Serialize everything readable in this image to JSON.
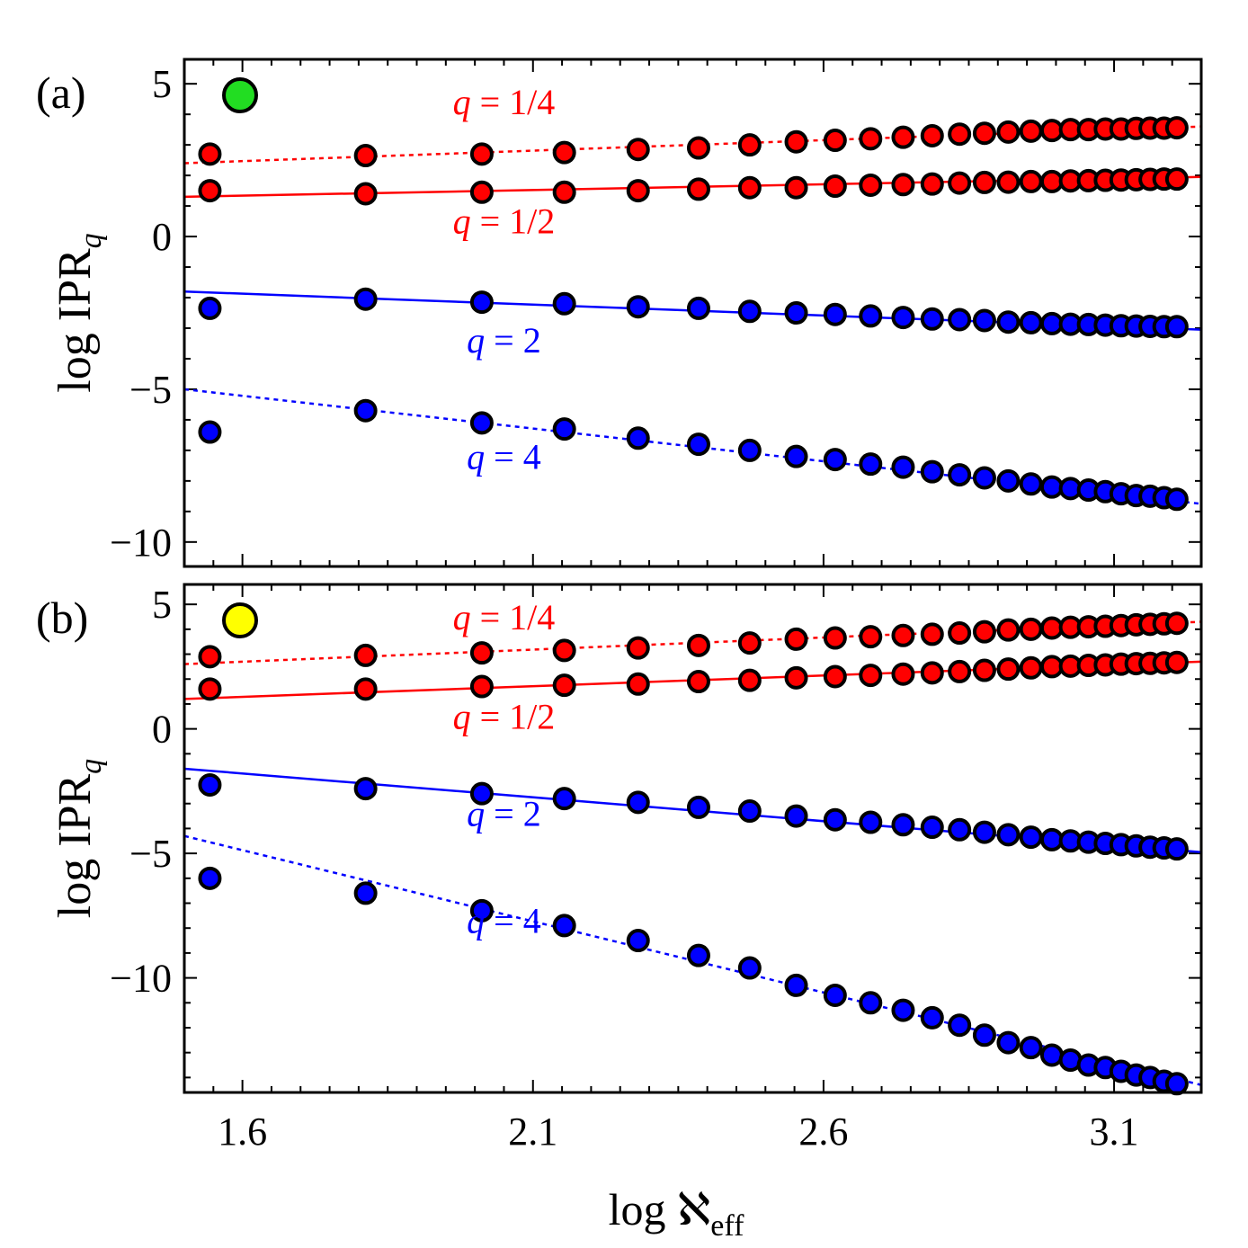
{
  "colors": {
    "red": "#ff0000",
    "blue": "#0000ff",
    "marker_outline": "#000000",
    "green_dot": "#22dd22",
    "yellow_dot": "#ffff00"
  },
  "figure": {
    "xlabel": {
      "prefix": "log ",
      "symbol": "ℵ",
      "sub": "eff"
    },
    "ylabel": {
      "prefix": "log IPR",
      "sub": "q"
    },
    "xlim": [
      1.5,
      3.25
    ],
    "xticks": [
      1.6,
      2.1,
      2.6,
      3.1
    ],
    "xtick_labels": [
      "1.6",
      "2.1",
      "2.6",
      "3.1"
    ]
  },
  "chart_data": [
    {
      "panel_label": "(a)",
      "indicator_color": "green",
      "type": "scatter",
      "ylim": [
        -10.8,
        5.8
      ],
      "yticks": [
        5,
        0,
        -5,
        -10
      ],
      "ytick_labels": [
        "5",
        "0",
        "−5",
        "−10"
      ],
      "x": [
        1.544,
        1.812,
        2.012,
        2.154,
        2.281,
        2.385,
        2.473,
        2.553,
        2.62,
        2.681,
        2.737,
        2.787,
        2.834,
        2.877,
        2.918,
        2.957,
        2.993,
        3.025,
        3.056,
        3.085,
        3.112,
        3.138,
        3.162,
        3.186,
        3.208
      ],
      "series": [
        {
          "curve": "q = 1/4",
          "color": "red",
          "line": "dotted",
          "fit": [
            1.5,
            2.4,
            3.25,
            3.6
          ],
          "values": [
            2.7,
            2.65,
            2.7,
            2.75,
            2.85,
            2.9,
            3.0,
            3.1,
            3.15,
            3.2,
            3.25,
            3.3,
            3.35,
            3.38,
            3.42,
            3.45,
            3.47,
            3.5,
            3.5,
            3.52,
            3.52,
            3.54,
            3.55,
            3.55,
            3.56
          ]
        },
        {
          "curve": "q = 1/2",
          "color": "red",
          "line": "solid",
          "fit": [
            1.5,
            1.3,
            3.25,
            1.95
          ],
          "values": [
            1.5,
            1.4,
            1.45,
            1.45,
            1.5,
            1.55,
            1.6,
            1.6,
            1.65,
            1.68,
            1.7,
            1.72,
            1.75,
            1.77,
            1.78,
            1.8,
            1.8,
            1.82,
            1.83,
            1.84,
            1.85,
            1.86,
            1.87,
            1.88,
            1.88
          ]
        },
        {
          "curve": "q = 2",
          "color": "blue",
          "line": "solid",
          "fit": [
            1.5,
            -1.8,
            3.25,
            -3.05
          ],
          "values": [
            -2.35,
            -2.05,
            -2.15,
            -2.2,
            -2.3,
            -2.35,
            -2.45,
            -2.5,
            -2.55,
            -2.6,
            -2.65,
            -2.7,
            -2.72,
            -2.75,
            -2.8,
            -2.82,
            -2.85,
            -2.87,
            -2.88,
            -2.9,
            -2.92,
            -2.93,
            -2.94,
            -2.95,
            -2.95
          ]
        },
        {
          "curve": "q = 4",
          "color": "blue",
          "line": "dotted",
          "fit": [
            1.5,
            -5.0,
            3.25,
            -8.75
          ],
          "values": [
            -6.4,
            -5.7,
            -6.1,
            -6.3,
            -6.6,
            -6.8,
            -7.0,
            -7.2,
            -7.3,
            -7.45,
            -7.55,
            -7.7,
            -7.8,
            -7.9,
            -8.0,
            -8.1,
            -8.2,
            -8.25,
            -8.3,
            -8.35,
            -8.42,
            -8.48,
            -8.5,
            -8.55,
            -8.6
          ]
        }
      ],
      "annotations": [
        {
          "text": "q = 1/4",
          "color": "red",
          "x": 2.05,
          "y": 4.0
        },
        {
          "text": "q = 1/2",
          "color": "red",
          "x": 2.05,
          "y": 0.1
        },
        {
          "text": "q = 2",
          "color": "blue",
          "x": 2.05,
          "y": -3.8
        },
        {
          "text": "q = 4",
          "color": "blue",
          "x": 2.05,
          "y": -7.6
        }
      ]
    },
    {
      "panel_label": "(b)",
      "indicator_color": "yellow",
      "type": "scatter",
      "ylim": [
        -14.6,
        5.8
      ],
      "yticks": [
        5,
        0,
        -5,
        -10
      ],
      "ytick_labels": [
        "5",
        "0",
        "−5",
        "−10"
      ],
      "x": [
        1.544,
        1.812,
        2.012,
        2.154,
        2.281,
        2.385,
        2.473,
        2.553,
        2.62,
        2.681,
        2.737,
        2.787,
        2.834,
        2.877,
        2.918,
        2.957,
        2.993,
        3.025,
        3.056,
        3.085,
        3.112,
        3.138,
        3.162,
        3.186,
        3.208
      ],
      "series": [
        {
          "curve": "q = 1/4",
          "color": "red",
          "line": "dotted",
          "fit": [
            1.5,
            2.6,
            3.25,
            4.3
          ],
          "values": [
            2.9,
            2.95,
            3.05,
            3.15,
            3.25,
            3.35,
            3.45,
            3.6,
            3.65,
            3.7,
            3.75,
            3.8,
            3.85,
            3.9,
            3.97,
            4.0,
            4.05,
            4.08,
            4.1,
            4.12,
            4.15,
            4.18,
            4.2,
            4.22,
            4.24
          ]
        },
        {
          "curve": "q = 1/2",
          "color": "red",
          "line": "solid",
          "fit": [
            1.5,
            1.2,
            3.25,
            2.7
          ],
          "values": [
            1.6,
            1.6,
            1.7,
            1.75,
            1.8,
            1.9,
            1.95,
            2.05,
            2.1,
            2.15,
            2.2,
            2.25,
            2.3,
            2.35,
            2.4,
            2.45,
            2.5,
            2.52,
            2.55,
            2.57,
            2.6,
            2.62,
            2.63,
            2.65,
            2.67
          ]
        },
        {
          "curve": "q = 2",
          "color": "blue",
          "line": "solid",
          "fit": [
            1.5,
            -1.6,
            3.25,
            -4.95
          ],
          "values": [
            -2.25,
            -2.4,
            -2.6,
            -2.8,
            -2.95,
            -3.15,
            -3.3,
            -3.5,
            -3.65,
            -3.75,
            -3.85,
            -3.95,
            -4.05,
            -4.15,
            -4.25,
            -4.35,
            -4.45,
            -4.5,
            -4.55,
            -4.6,
            -4.65,
            -4.7,
            -4.75,
            -4.78,
            -4.82
          ]
        },
        {
          "curve": "q = 4",
          "color": "blue",
          "line": "dotted",
          "fit": [
            1.5,
            -4.3,
            3.25,
            -14.3
          ],
          "values": [
            -6.0,
            -6.6,
            -7.3,
            -7.9,
            -8.5,
            -9.1,
            -9.6,
            -10.3,
            -10.7,
            -11.0,
            -11.3,
            -11.6,
            -11.9,
            -12.3,
            -12.6,
            -12.8,
            -13.1,
            -13.3,
            -13.5,
            -13.6,
            -13.75,
            -13.9,
            -14.0,
            -14.15,
            -14.25
          ]
        }
      ],
      "annotations": [
        {
          "text": "q = 1/4",
          "color": "red",
          "x": 2.05,
          "y": 4.0
        },
        {
          "text": "q = 1/2",
          "color": "red",
          "x": 2.05,
          "y": 0.0
        },
        {
          "text": "q = 2",
          "color": "blue",
          "x": 2.05,
          "y": -3.9
        },
        {
          "text": "q = 4",
          "color": "blue",
          "x": 2.05,
          "y": -8.2
        }
      ]
    }
  ]
}
